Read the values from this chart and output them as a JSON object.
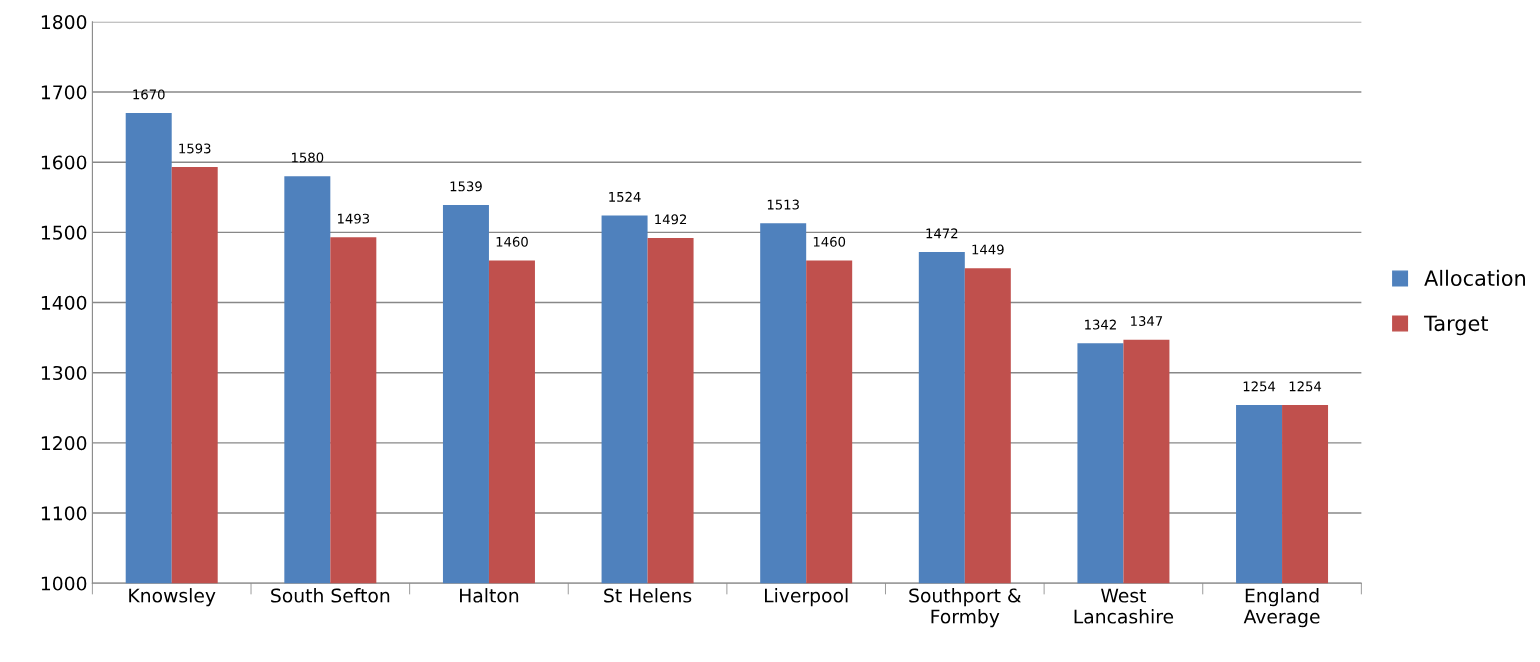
{
  "chart_data": {
    "type": "bar",
    "categories": [
      "Knowsley",
      "South Sefton",
      "Halton",
      "St Helens",
      "Liverpool",
      "Southport &\nFormby",
      "West\nLancashire",
      "England\nAverage"
    ],
    "series": [
      {
        "name": "Allocation",
        "color": "#4f81bd",
        "values": [
          1670,
          1580,
          1539,
          1524,
          1513,
          1472,
          1342,
          1254
        ]
      },
      {
        "name": "Target",
        "color": "#c0504d",
        "values": [
          1593,
          1493,
          1460,
          1492,
          1460,
          1449,
          1347,
          1254
        ]
      }
    ],
    "ylim": [
      1000,
      1800
    ],
    "yticks": [
      1000,
      1100,
      1200,
      1300,
      1400,
      1500,
      1600,
      1700,
      1800
    ],
    "grid": "y",
    "legend": "right",
    "data_labels": true
  }
}
